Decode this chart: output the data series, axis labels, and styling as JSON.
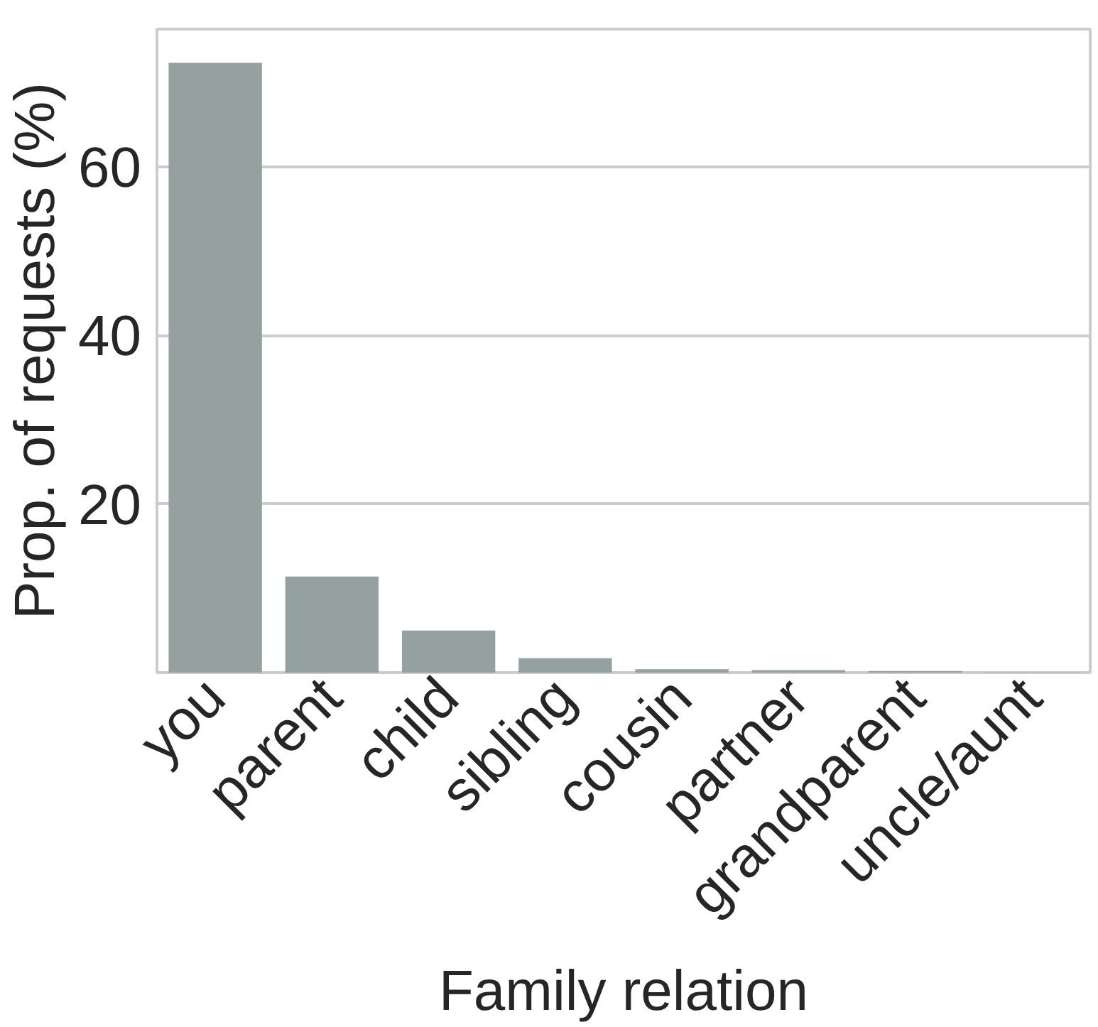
{
  "chart_data": {
    "type": "bar",
    "xlabel": "Family relation",
    "ylabel": "Prop. of requests (%)",
    "categories": [
      "you",
      "parent",
      "child",
      "sibling",
      "cousin",
      "partner",
      "grandparent",
      "uncle/aunt"
    ],
    "values": [
      72.3,
      11.4,
      5.0,
      1.7,
      0.4,
      0.3,
      0.2,
      0.05
    ],
    "color": "#95a0a1",
    "ylim": [
      0,
      76.3
    ],
    "yticks": [
      20,
      40,
      60
    ],
    "grid": "y"
  }
}
